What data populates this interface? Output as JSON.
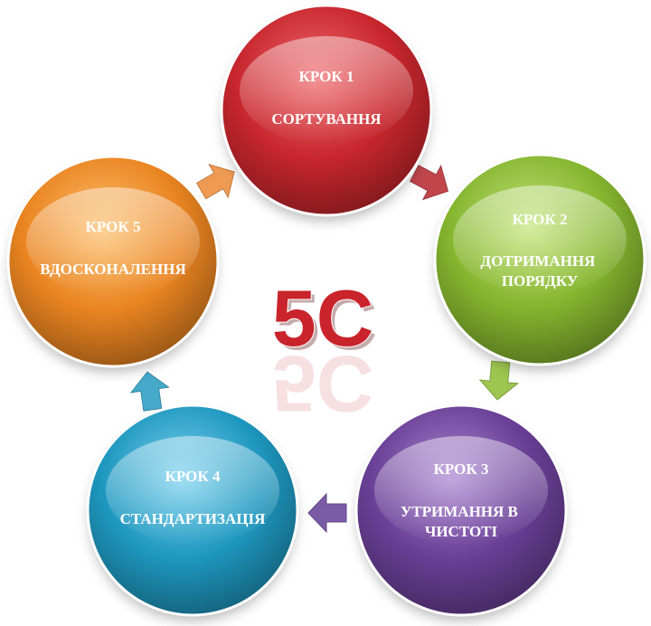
{
  "center": {
    "label": "5С",
    "color": "#c9232b"
  },
  "steps": [
    {
      "step": "КРОК 1",
      "name_lines": [
        "СОРТУВАННЯ"
      ],
      "color": "#c7262d",
      "light": "#ee6a6e"
    },
    {
      "step": "КРОК 2",
      "name_lines": [
        "ДОТРИМАННЯ",
        "ПОРЯДКУ"
      ],
      "color": "#84b52e",
      "light": "#c4e47a"
    },
    {
      "step": "КРОК 3",
      "name_lines": [
        "УТРИМАННЯ В",
        "ЧИСТОТІ"
      ],
      "color": "#6a3f96",
      "light": "#ab86d1"
    },
    {
      "step": "КРОК 4",
      "name_lines": [
        "СТАНДАРТИЗАЦІЯ"
      ],
      "color": "#1e97bf",
      "light": "#7cd1ee"
    },
    {
      "step": "КРОК 5",
      "name_lines": [
        "ВДОСКОНАЛЕННЯ"
      ],
      "color": "#ea8421",
      "light": "#fcc06e"
    }
  ],
  "arrows": [
    {
      "from": 1,
      "to": 2,
      "color": "#c0464c"
    },
    {
      "from": 2,
      "to": 3,
      "color": "#9cc64f"
    },
    {
      "from": 3,
      "to": 4,
      "color": "#7b5aa6"
    },
    {
      "from": 4,
      "to": 5,
      "color": "#45a9c9"
    },
    {
      "from": 5,
      "to": 1,
      "color": "#ef9a52"
    }
  ]
}
